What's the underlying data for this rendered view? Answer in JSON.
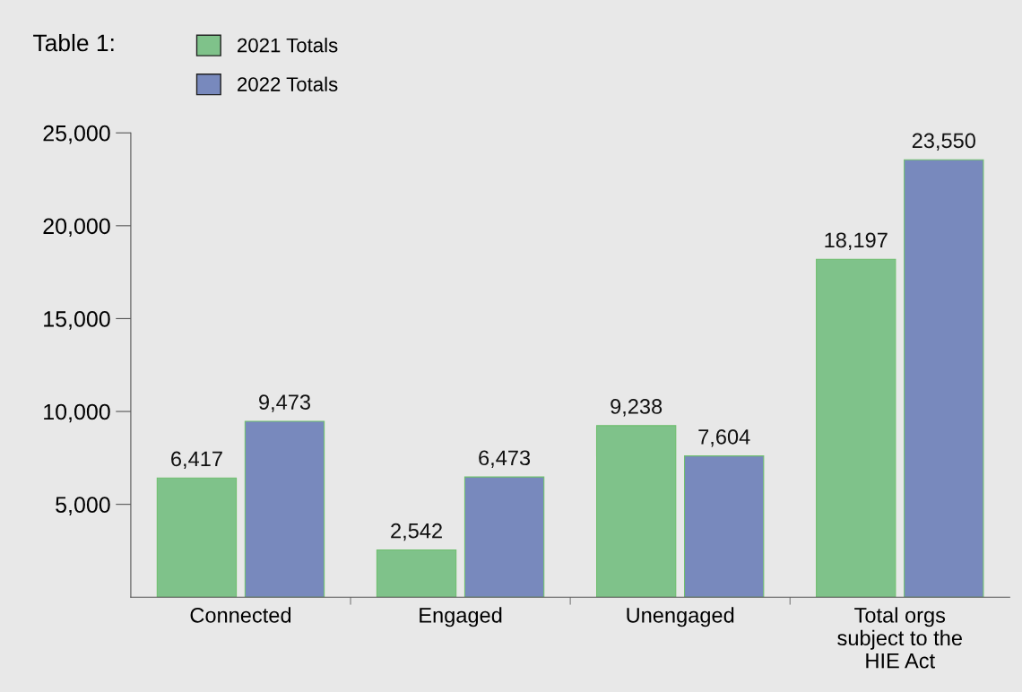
{
  "chart_data": {
    "type": "bar",
    "title": "Table 1:",
    "categories": [
      "Connected",
      "Engaged",
      "Unengaged",
      "Total orgs\nsubject to the\nHIE Act"
    ],
    "series": [
      {
        "name": "2021 Totals",
        "color": "#7fc28a",
        "values": [
          6417,
          2542,
          9238,
          18197
        ],
        "value_labels": [
          "6,417",
          "2,542",
          "9,238",
          "18,197"
        ]
      },
      {
        "name": "2022 Totals",
        "color": "#7889bd",
        "values": [
          9473,
          6473,
          7604,
          23550
        ],
        "value_labels": [
          "9,473",
          "6,473",
          "7,604",
          "23,550"
        ]
      }
    ],
    "ylim": [
      0,
      25000
    ],
    "yticks": [
      {
        "value": 5000,
        "label": "5,000"
      },
      {
        "value": 10000,
        "label": "10,000"
      },
      {
        "value": 15000,
        "label": "15,000"
      },
      {
        "value": 20000,
        "label": "20,000"
      },
      {
        "value": 25000,
        "label": "25,000"
      }
    ],
    "legend": "top left",
    "grid": false
  }
}
